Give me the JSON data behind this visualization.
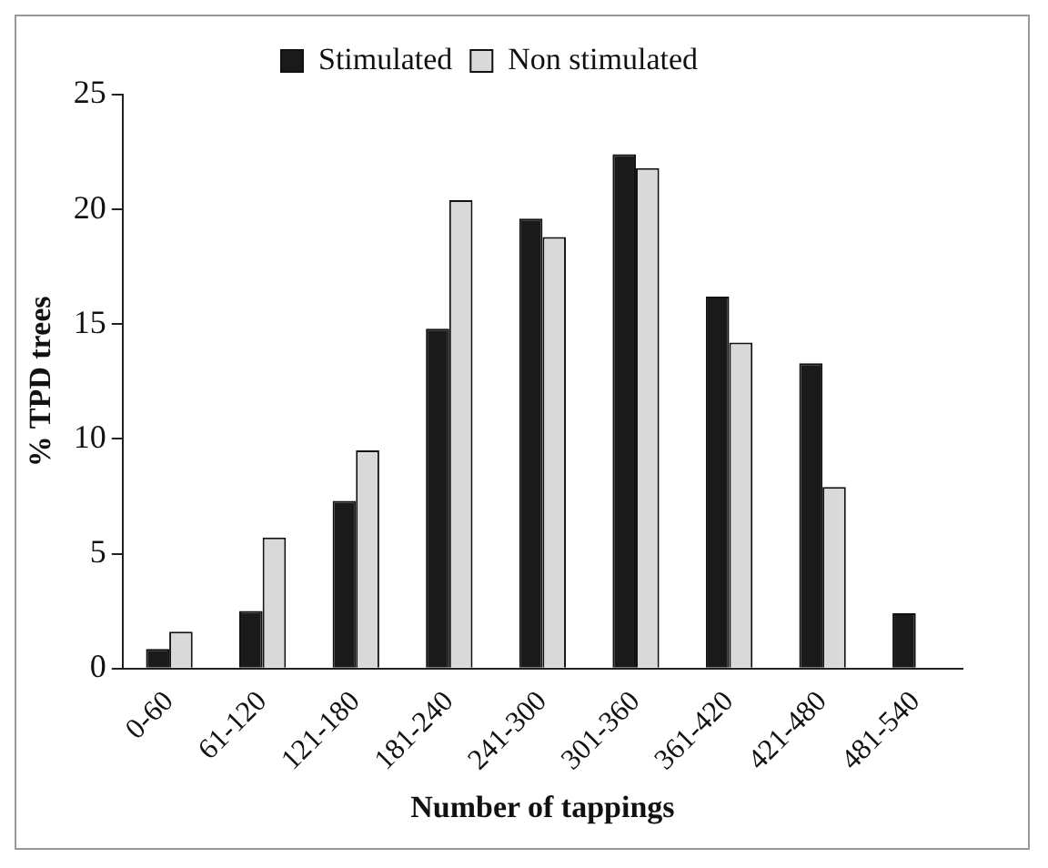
{
  "chart_data": {
    "type": "bar",
    "xlabel": "Number of tappings",
    "ylabel": "% TPD trees",
    "categories": [
      "0-60",
      "61-120",
      "121-180",
      "181-240",
      "241-300",
      "301-360",
      "361-420",
      "421-480",
      "481-540"
    ],
    "series": [
      {
        "name": "Stimulated",
        "color": "#1a1a1a",
        "values": [
          0.85,
          2.5,
          7.3,
          14.8,
          19.6,
          22.4,
          16.2,
          13.3,
          2.4
        ]
      },
      {
        "name": "Non stimulated",
        "color": "#d9d9d9",
        "values": [
          1.6,
          5.7,
          9.5,
          20.4,
          18.8,
          21.8,
          14.2,
          7.9,
          null
        ]
      }
    ],
    "ylim": [
      0,
      25
    ],
    "yticks": [
      0,
      5,
      10,
      15,
      20,
      25
    ],
    "grid": false,
    "legend": "top"
  }
}
